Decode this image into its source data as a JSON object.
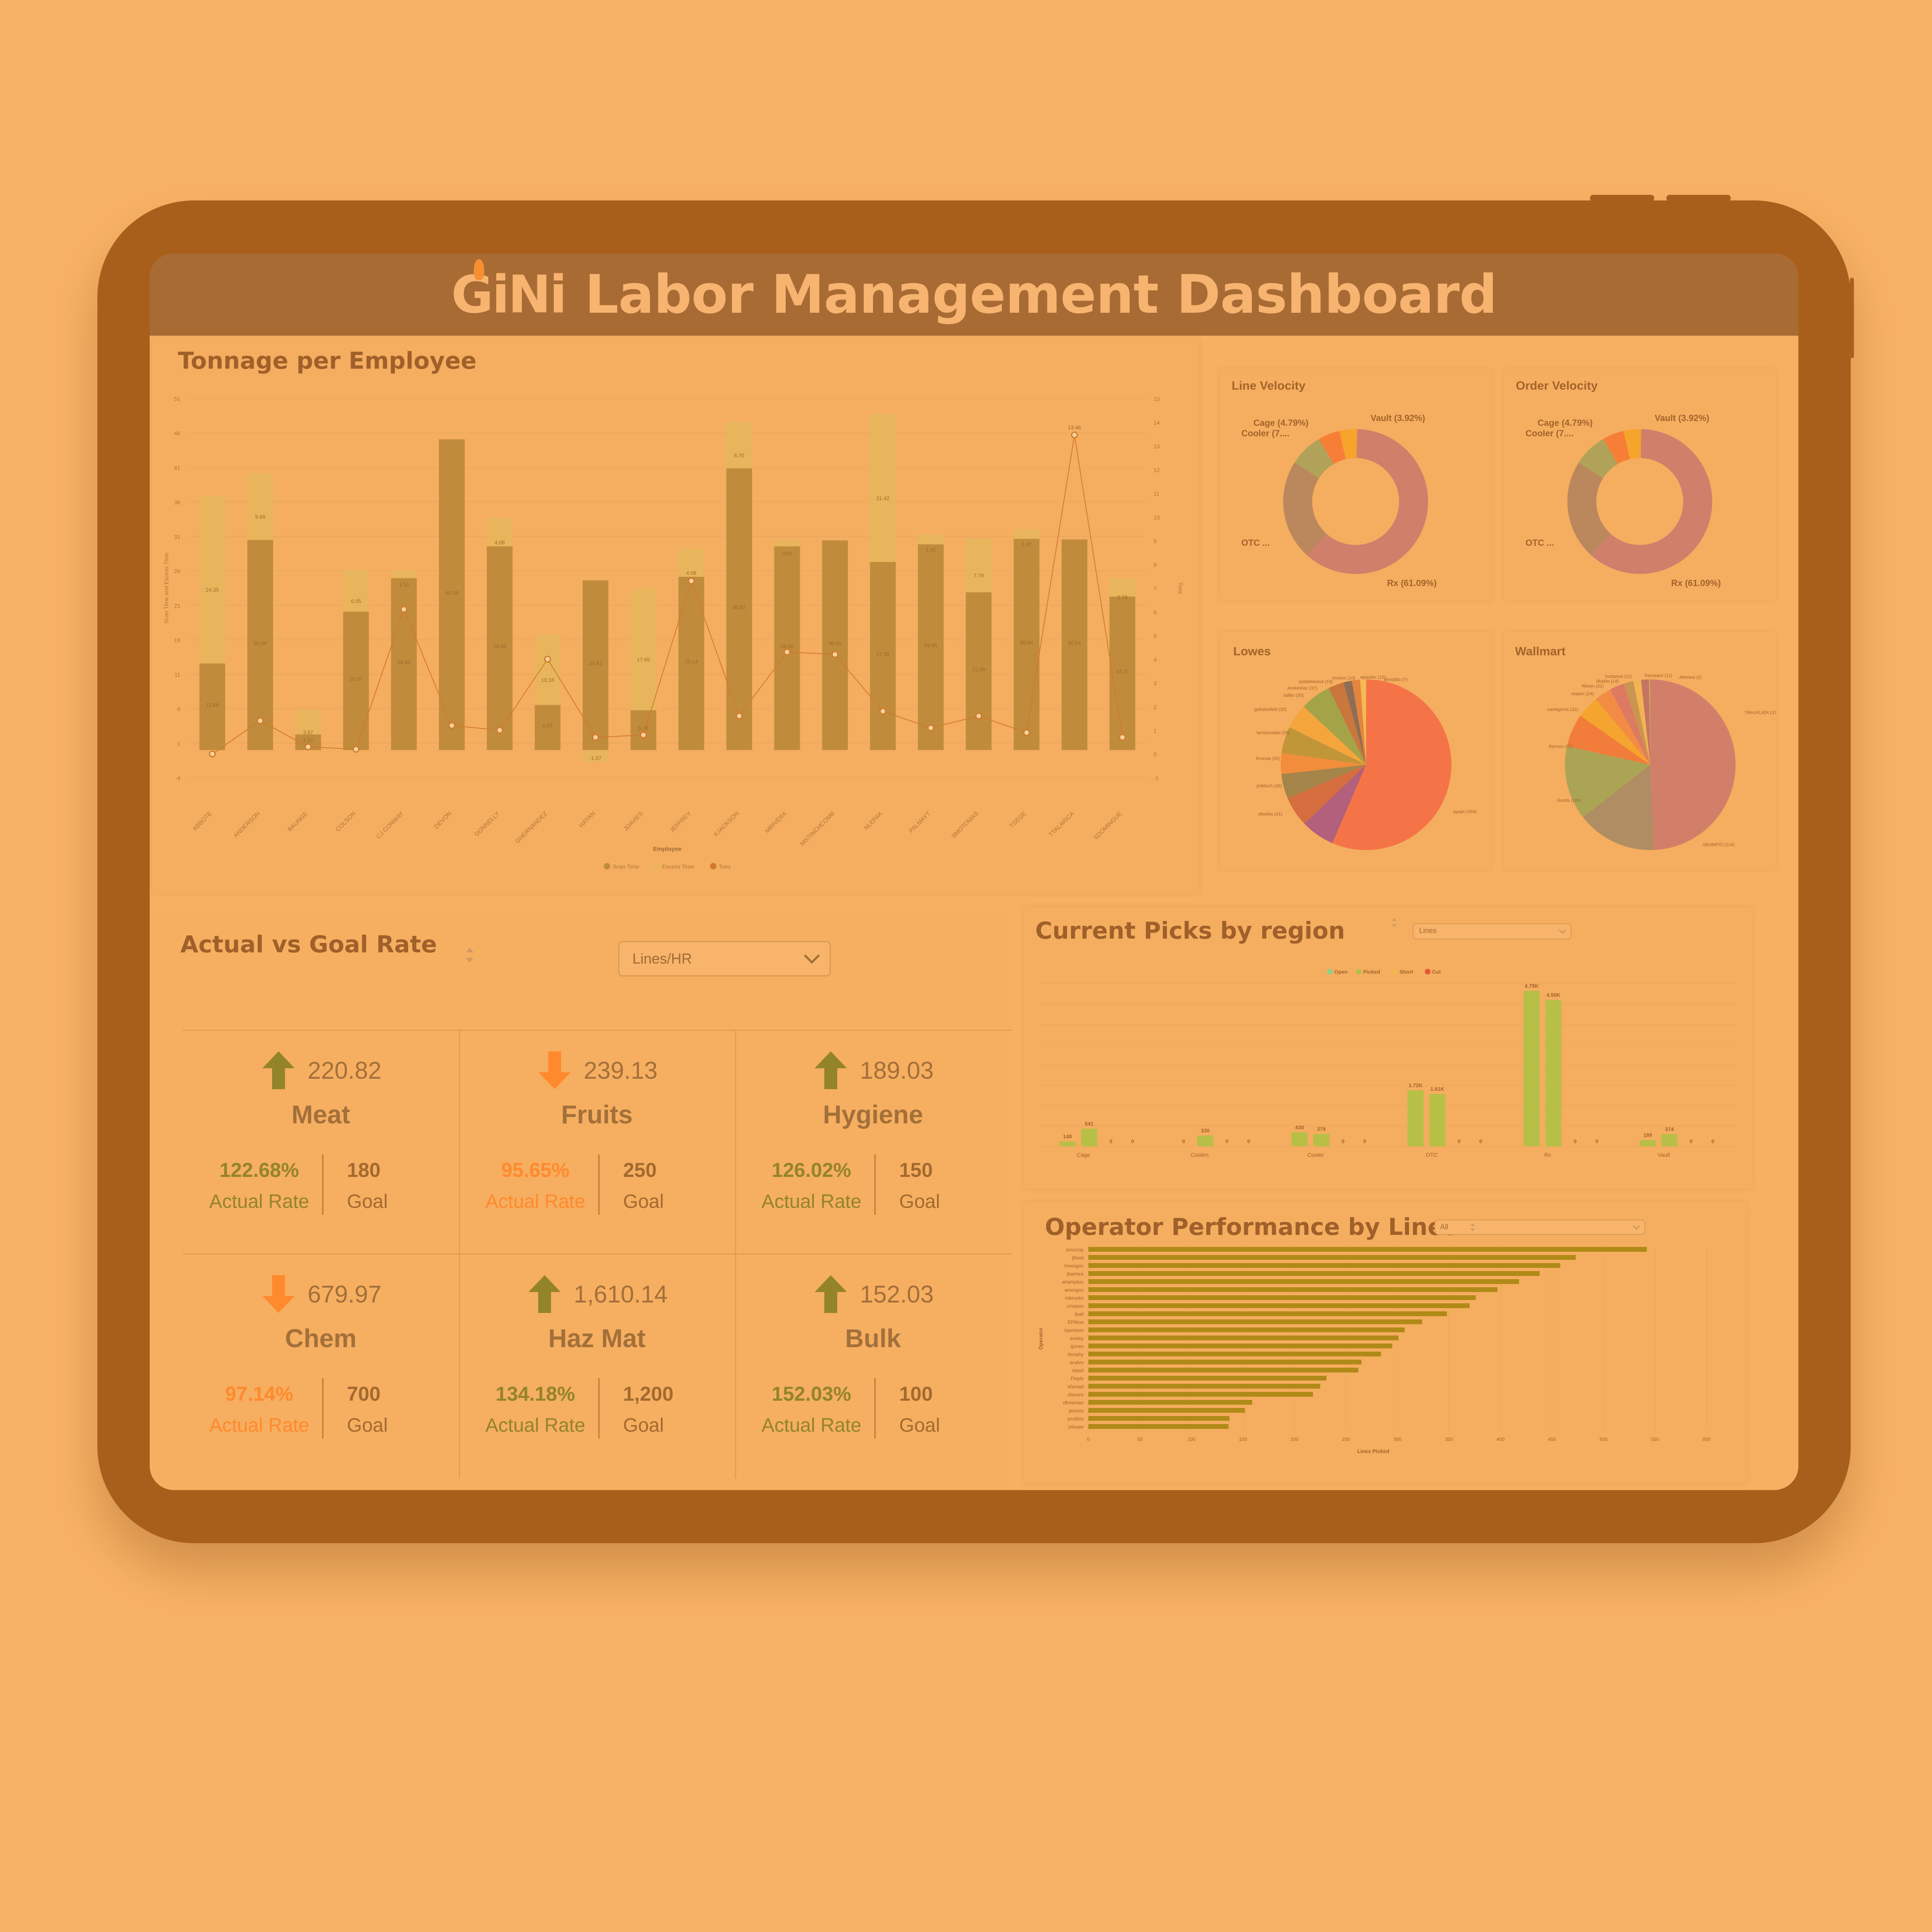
{
  "header": {
    "logo": "GiNi",
    "title": "Labor Management Dashboard"
  },
  "colors": {
    "scan": "#c18b3c",
    "excess": "#e8b55c",
    "tons": "#d07a2a",
    "up": "#93842a",
    "down": "#ff8a2e",
    "open": "#8ccf8e",
    "picked": "#b7bf47",
    "short": "#f1b94b",
    "cut": "#e8533b",
    "operator_bar": "#b08a17"
  },
  "tonnage": {
    "title": "Tonnage per Employee",
    "xlabel": "Employee",
    "ylabel_left": "Scan Time and Excess Time",
    "ylabel_right": "Tons",
    "legend": [
      {
        "name": "Scan Time",
        "color": "#c18b3c"
      },
      {
        "name": "Excess Time",
        "color": "#e8b55c"
      },
      {
        "name": "Tons",
        "color": "#d07a2a"
      }
    ]
  },
  "line_velocity": {
    "title": "Line Velocity",
    "labels": {
      "vault": "Vault (3.92%)",
      "cage": "Cage (4.79%)",
      "cooler": "Cooler (7....",
      "otc": "OTC ...",
      "rx": "Rx (61.09%)"
    }
  },
  "order_velocity": {
    "title": "Order Velocity",
    "labels": {
      "vault": "Vault (3.92%)",
      "cage": "Cage (4.79%)",
      "cooler": "Cooler (7....",
      "otc": "OTC ...",
      "rx": "Rx (61.09%)"
    }
  },
  "lowes": {
    "title": "Lowes",
    "labels": [
      "ayaan (359)",
      "elbellas (41)",
      "jmbitsch (36)",
      "fmresta (30)",
      "lamiarosado (25)",
      "gwhahsfield (32)",
      "sallito (30)",
      "Ameeshaz (37)",
      "rpiddahessal (19)",
      "mrares (10)",
      "wpsolex (10)",
      "afreddilo (7)"
    ]
  },
  "wallmart": {
    "title": "Wallmart",
    "labels": [
      "TRAUFLIER (372)",
      "Ramsaint (11)",
      "Aleesea (2)",
      "hostance (11)",
      "dbaldo (14)",
      "Rbsen (21)",
      "mapes (24)",
      "vantagoms (32)",
      "Bannos (47)",
      "Gamls (106)",
      "GEAMPIO (114)"
    ]
  },
  "actual_vs_goal": {
    "title": "Actual vs Goal Rate",
    "dropdown": "Lines/HR",
    "actual_label": "Actual Rate",
    "goal_label": "Goal",
    "cells": [
      {
        "name": "Meat",
        "value": "220.82",
        "trend": "up",
        "pct": "122.68%",
        "goal": "180"
      },
      {
        "name": "Fruits",
        "value": "239.13",
        "trend": "down",
        "pct": "95.65%",
        "goal": "250"
      },
      {
        "name": "Hygiene",
        "value": "189.03",
        "trend": "up",
        "pct": "126.02%",
        "goal": "150"
      },
      {
        "name": "Chem",
        "value": "679.97",
        "trend": "down",
        "pct": "97.14%",
        "goal": "700"
      },
      {
        "name": "Haz Mat",
        "value": "1,610.14",
        "trend": "up",
        "pct": "134.18%",
        "goal": "1,200"
      },
      {
        "name": "Bulk",
        "value": "152.03",
        "trend": "up",
        "pct": "152.03%",
        "goal": "100"
      }
    ]
  },
  "current_picks": {
    "title": "Current Picks by region",
    "dropdown": "Lines",
    "legend": [
      "Open",
      "Picked",
      "Short",
      "Cut"
    ]
  },
  "operator_perf": {
    "title": "Operator Performance by Lines",
    "dropdown": "All",
    "xlabel": "Lines Picked",
    "ylabel": "Operator"
  },
  "chart_data": [
    {
      "type": "bar",
      "title": "Tonnage per Employee",
      "xlabel": "Employee",
      "ylabel": "Scan Time and Excess Time",
      "ylim": [
        -4,
        51
      ],
      "y2lim": [
        -1,
        15
      ],
      "yticks": [
        "-4",
        "1",
        "6",
        "11",
        "16",
        "21",
        "26",
        "31",
        "36",
        "41",
        "46",
        "51"
      ],
      "y2ticks": [
        "-1",
        "0",
        "1",
        "2",
        "3",
        "4",
        "5",
        "6",
        "7",
        "8",
        "9",
        "10",
        "11",
        "12",
        "13",
        "14",
        "15"
      ],
      "categories": [
        "ABBOTE",
        "ANDERSON",
        "BAUNGE",
        "COLSON",
        "CJ CONWAY",
        "DEVON",
        "DONNELLY",
        "GHERNANDEZ",
        "HAYAN",
        "JDAVIES",
        "JEFFREY",
        "KJACKSON",
        "MRIVERA",
        "MSTINCHCOMB",
        "NLEPAK",
        "PALMAYT",
        "SMOTOMAS",
        "TSEGE",
        "TTALARICA",
        "XDOMINGUE"
      ],
      "series": [
        {
          "name": "Scan Time",
          "values": [
            12.56,
            30.48,
            2.27,
            20.07,
            24.93,
            45.08,
            29.56,
            6.55,
            24.61,
            5.78,
            25.14,
            40.87,
            29.56,
            30.41,
            27.29,
            29.85,
            22.89,
            30.64,
            30.54,
            22.27
          ]
        },
        {
          "name": "Excess Time",
          "values": [
            24.35,
            9.69,
            3.57,
            6.05,
            1.16,
            0,
            4.08,
            10.18,
            -1.67,
            17.65,
            4.08,
            6.7,
            0.91,
            0,
            21.42,
            1.42,
            7.79,
            1.42,
            0,
            2.73
          ]
        },
        {
          "name": "Tons",
          "values": [
            0.0,
            1.4,
            0.3,
            0.2,
            6.1,
            1.2,
            1.0,
            4.0,
            0.7,
            0.8,
            7.3,
            1.6,
            4.3,
            4.2,
            1.8,
            1.1,
            1.6,
            0.9,
            13.46,
            0.7
          ]
        }
      ],
      "data_labels": [
        "1.56",
        "4.08",
        "21.42",
        "1.42",
        "7.79",
        "13.46",
        "2.73",
        "6.70",
        "4.08",
        "17.65",
        "10.18",
        "24.35",
        "9.69",
        "3.57",
        "6.05"
      ]
    },
    {
      "type": "pie",
      "title": "Line Velocity",
      "labels": [
        "Rx",
        "OTC",
        "Cooler",
        "Cage",
        "Vault"
      ],
      "values": [
        61.09,
        22.2,
        7.5,
        4.79,
        3.92
      ],
      "label_text": [
        "Rx (61.09%)",
        "OTC ...",
        "Cooler (7....",
        "Cage (4.79%)",
        "Vault (3.92%)"
      ]
    },
    {
      "type": "pie",
      "title": "Order Velocity",
      "labels": [
        "Rx",
        "OTC",
        "Cooler",
        "Cage",
        "Vault"
      ],
      "values": [
        61.09,
        22.2,
        7.5,
        4.79,
        3.92
      ],
      "label_text": [
        "Rx (61.09%)",
        "OTC ...",
        "Cooler (7....",
        "Cage (4.79%)",
        "Vault (3.92%)"
      ]
    },
    {
      "type": "pie",
      "title": "Lowes",
      "values": [
        359,
        41,
        36,
        30,
        25,
        32,
        30,
        37,
        19,
        10,
        10,
        7
      ]
    },
    {
      "type": "pie",
      "title": "Wallmart",
      "values": [
        372,
        114,
        106,
        47,
        32,
        24,
        21,
        14,
        11,
        11,
        2
      ]
    },
    {
      "type": "bar",
      "title": "Current Picks by region",
      "categories": [
        "Cage",
        "Coolen",
        "Cooler",
        "OTC",
        "Rx",
        "Vault"
      ],
      "series": [
        {
          "name": "Open",
          "values": [
            148,
            0,
            430,
            1720,
            4780,
            189
          ]
        },
        {
          "name": "Picked",
          "values": [
            541,
            330,
            379,
            1610,
            4500,
            374
          ]
        },
        {
          "name": "Short",
          "values": [
            0,
            0,
            0,
            0,
            0,
            0
          ]
        },
        {
          "name": "Cut",
          "values": [
            0,
            0,
            0,
            0,
            0,
            0
          ]
        }
      ],
      "data_labels": {
        "Open": [
          "148",
          "0",
          "430",
          "1.72K",
          "4.78K",
          "189"
        ],
        "Picked": [
          "541",
          "330",
          "379",
          "1.61K",
          "4.50K",
          "374"
        ],
        "Short": [
          "0",
          "0",
          "0",
          "0",
          "0",
          "0"
        ],
        "Cut": [
          "0",
          "0",
          "0",
          "0",
          "0",
          "0"
        ]
      }
    },
    {
      "type": "bar",
      "orientation": "horizontal",
      "title": "Operator Performance by Lines",
      "xlabel": "Lines Picked",
      "ylabel": "Operator",
      "xlim": [
        0,
        600
      ],
      "xticks": [
        "0",
        "50",
        "100",
        "150",
        "200",
        "250",
        "300",
        "350",
        "400",
        "450",
        "500",
        "550",
        "600"
      ],
      "categories": [
        "amurray",
        "jflood",
        "hmorgan",
        "jbarrera",
        "ahampton",
        "amorgan",
        "mbrooks",
        "cmason",
        "tball",
        "EPillow",
        "kjamison",
        "avaisy",
        "tjones",
        "bmiahy",
        "acalvo",
        "tdavil",
        "Floyle",
        "kfarsad",
        "dlasure",
        "dfreeman",
        "jaiosvs",
        "pcollins",
        "jobsaw"
      ],
      "values": [
        542,
        473,
        458,
        438,
        418,
        397,
        376,
        370,
        348,
        324,
        307,
        301,
        295,
        284,
        265,
        262,
        231,
        225,
        218,
        159,
        152,
        137,
        136
      ]
    }
  ]
}
